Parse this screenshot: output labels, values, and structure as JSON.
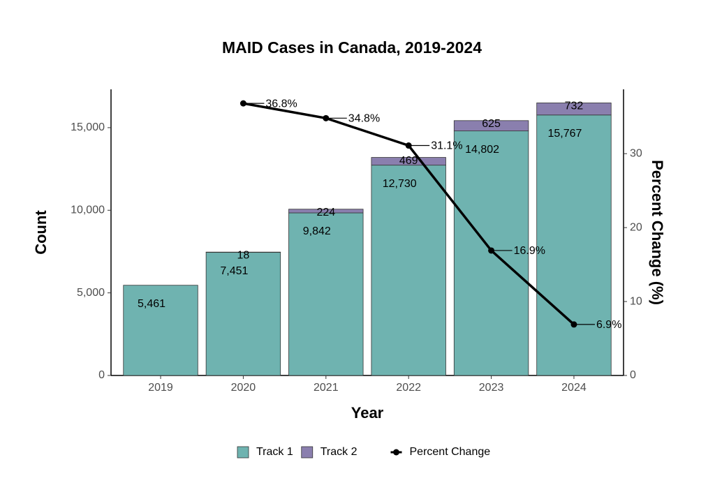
{
  "chart_data": {
    "type": "bar",
    "stacked": true,
    "title": "MAID Cases in Canada, 2019-2024",
    "x_label": "Year",
    "y_label": "Count",
    "y2_label": "Percent Change (%)",
    "categories": [
      "2019",
      "2020",
      "2021",
      "2022",
      "2023",
      "2024"
    ],
    "series": [
      {
        "name": "Track 1",
        "color": "#6fb3b0",
        "values": [
          5461,
          7451,
          9842,
          12730,
          14802,
          15767
        ],
        "value_labels": [
          "5,461",
          "7,451",
          "9,842",
          "12,730",
          "14,802",
          "15,767"
        ]
      },
      {
        "name": "Track 2",
        "color": "#8a7fae",
        "values": [
          null,
          18,
          224,
          469,
          625,
          732
        ]
      },
      {
        "name": "Percent Change",
        "type": "line",
        "axis": "y2",
        "color": "#000000",
        "values": [
          null,
          36.8,
          34.8,
          31.1,
          16.9,
          6.9
        ],
        "value_labels": [
          null,
          "36.8%",
          "34.8%",
          "31.1%",
          "16.9%",
          "6.9%"
        ]
      }
    ],
    "ylim": [
      0,
      17320
    ],
    "yticks": [
      0,
      {
        "value": 5000,
        "label": "5,000"
      },
      {
        "value": 10000,
        "label": "10,000"
      },
      {
        "value": 15000,
        "label": "15,000"
      }
    ],
    "y2lim": [
      0,
      38.7
    ],
    "y2ticks": [
      0,
      10,
      20,
      30
    ],
    "legend": "bottom"
  }
}
